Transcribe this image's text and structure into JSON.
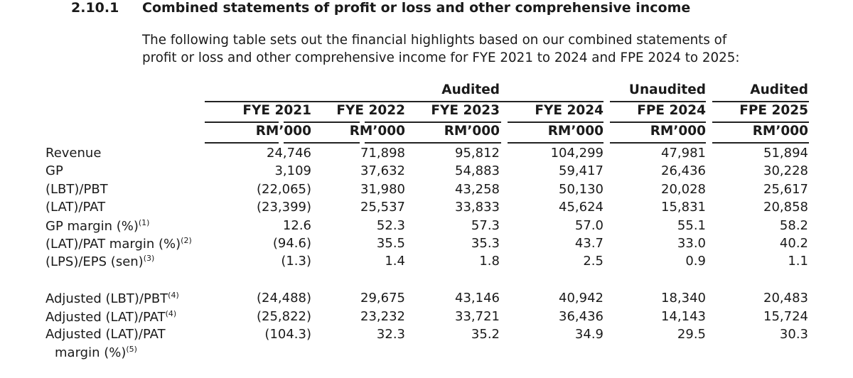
{
  "section": {
    "number": "2.10.1",
    "title": "Combined statements of profit or loss and other comprehensive income"
  },
  "intro": [
    "The following table sets out the financial highlights based on our combined statements of",
    "profit or loss and other comprehensive income for FYE 2021 to 2024 and FPE 2024 to 2025:"
  ],
  "table": {
    "groups": [
      "Audited",
      "Unaudited",
      "Audited"
    ],
    "columns": [
      {
        "period": "FYE 2021",
        "unit": "RM’000"
      },
      {
        "period": "FYE 2022",
        "unit": "RM’000"
      },
      {
        "period": "FYE 2023",
        "unit": "RM’000"
      },
      {
        "period": "FYE 2024",
        "unit": "RM’000"
      },
      {
        "period": "FPE 2024",
        "unit": "RM’000"
      },
      {
        "period": "FPE 2025",
        "unit": "RM’000"
      }
    ],
    "rows": [
      {
        "label": "Revenue",
        "note": "",
        "values": [
          "24,746",
          "71,898",
          "95,812",
          "104,299",
          "47,981",
          "51,894"
        ]
      },
      {
        "label": "GP",
        "note": "",
        "values": [
          "3,109",
          "37,632",
          "54,883",
          "59,417",
          "26,436",
          "30,228"
        ]
      },
      {
        "label": "(LBT)/PBT",
        "note": "",
        "values": [
          "(22,065)",
          "31,980",
          "43,258",
          "50,130",
          "20,028",
          "25,617"
        ]
      },
      {
        "label": "(LAT)/PAT",
        "note": "",
        "values": [
          "(23,399)",
          "25,537",
          "33,833",
          "45,624",
          "15,831",
          "20,858"
        ]
      },
      {
        "label": "GP margin (%)",
        "note": "(1)",
        "values": [
          "12.6",
          "52.3",
          "57.3",
          "57.0",
          "55.1",
          "58.2"
        ]
      },
      {
        "label": "(LAT)/PAT margin (%)",
        "note": "(2)",
        "values": [
          "(94.6)",
          "35.5",
          "35.3",
          "43.7",
          "33.0",
          "40.2"
        ]
      },
      {
        "label": "(LPS)/EPS (sen)",
        "note": "(3)",
        "values": [
          "(1.3)",
          "1.4",
          "1.8",
          "2.5",
          "0.9",
          "1.1"
        ]
      },
      {
        "label": "Adjusted (LBT)/PBT",
        "note": "(4)",
        "values": [
          "(24,488)",
          "29,675",
          "43,146",
          "40,942",
          "18,340",
          "20,483"
        ]
      },
      {
        "label": "Adjusted (LAT)/PAT",
        "note": "(4)",
        "values": [
          "(25,822)",
          "23,232",
          "33,721",
          "36,436",
          "14,143",
          "15,724"
        ]
      },
      {
        "label": "Adjusted (LAT)/PAT",
        "label2": "margin (%)",
        "note": "(5)",
        "values": [
          "(104.3)",
          "32.3",
          "35.2",
          "34.9",
          "29.5",
          "30.3"
        ]
      }
    ]
  }
}
